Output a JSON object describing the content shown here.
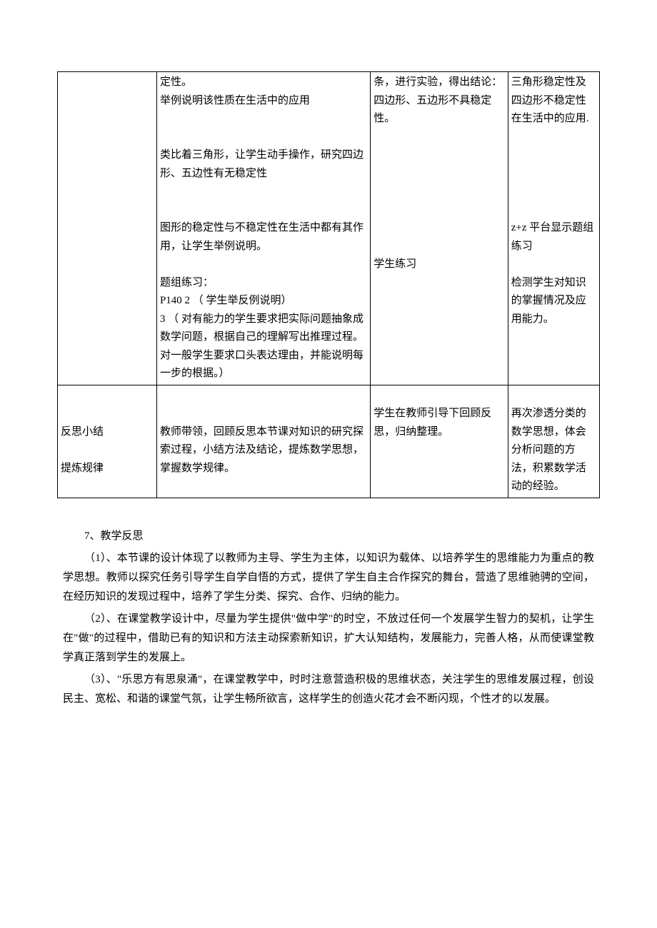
{
  "table": {
    "row1": {
      "col1": "",
      "col2_p1": "定性。",
      "col2_p2": "举例说明该性质在生活中的应用",
      "col2_p3": "类比着三角形，让学生动手操作，研究四边形、五边性有无稳定性",
      "col2_p4": "图形的稳定性与不稳定性在生活中都有其作用，让学生举例说明。",
      "col2_p5": "题组练习：",
      "col2_p6": "P140 2 （ 学生举反例说明）",
      "col2_p7": "3    （ 对有能力的学生要求把实际问题抽象成数学问题，根据自己的理解写出推理过程。对一般学生要求口头表达理由，并能说明每一步的根据。）",
      "col3_p1": "条，进行实验，得出结论：",
      "col3_p2": "四边形、五边形不具稳定性。",
      "col3_p3": "学生练习",
      "col4_p1": "三角形稳定性及四边形不稳定性在生活中的应用.",
      "col4_p2": "z+z 平台显示题组练习",
      "col4_p3": "检测学生对知识的掌握情况及应用能力。"
    },
    "row2": {
      "col1_p1": "反思小结",
      "col1_p2": "提炼规律",
      "col2": "教师带领，回顾反思本节课对知识的研究探索过程，小结方法及结论，提炼数学思想，掌握数学规律。",
      "col3": "学生在教师引导下回顾反思，归纳整理。",
      "col4": "再次渗透分类的数学思想，体会分析问题的方法，积累数学活动的经验。"
    }
  },
  "reflection": {
    "heading": "7、教学反思",
    "para1": "（1）、本节课的设计体现了以教师为主导、学生为主体，以知识为载体、以培养学生的思维能力为重点的教学思想。教师以探究任务引导学生自学自悟的方式，提供了学生自主合作探究的舞台，营造了思维驰骋的空间，在经历知识的发现过程中，培养了学生分类、探究、合作、归纳的能力。",
    "para2": "（2）、在课堂教学设计中，尽量为学生提供\"做中学\"的时空，不放过任何一个发展学生智力的契机，让学生在\"做\"的过程中，借助已有的知识和方法主动探索新知识，扩大认知结构，发展能力，完善人格，从而使课堂教学真正落到学生的发展上。",
    "para3": "（3）、\"乐思方有思泉涌\"，在课堂教学中，时时注意营造积极的思维状态，关注学生的思维发展过程，创设民主、宽松、和谐的课堂气氛，让学生畅所欲言，这样学生的创造火花才会不断闪现，个性才的以发展。"
  }
}
